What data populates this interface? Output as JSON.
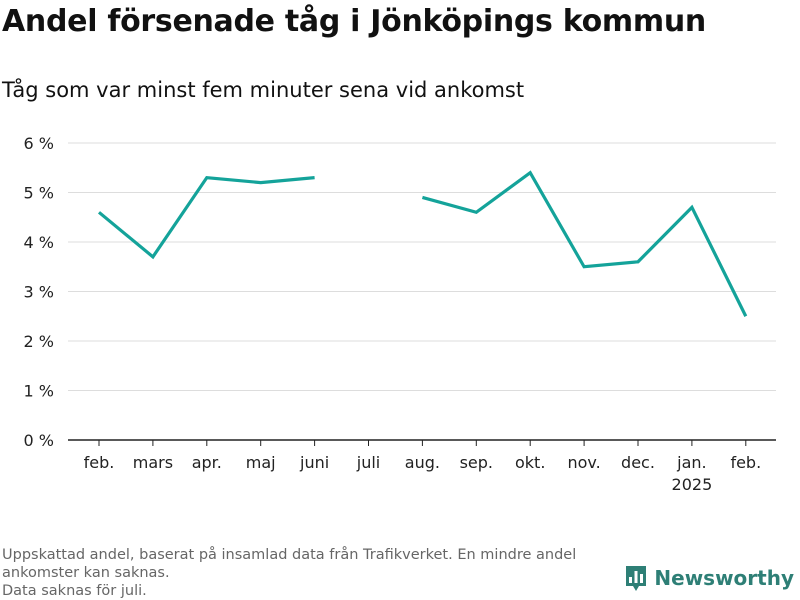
{
  "title": "Andel försenade tåg i Jönköpings kommun",
  "subtitle": "Tåg som var minst fem minuter sena vid ankomst",
  "footnote": {
    "line1": "Uppskattad andel, baserat på insamlad data från Trafikverket. En mindre andel ankomster kan saknas.",
    "line2": "Data saknas för juli."
  },
  "brand": {
    "name": "Newsworthy",
    "icon": "bar-chart-icon",
    "color": "#2e7f76"
  },
  "colors": {
    "line": "#14a39a",
    "grid": "#dddddd",
    "axis": "#222222"
  },
  "chart_data": {
    "type": "line",
    "title": "Andel försenade tåg i Jönköpings kommun",
    "subtitle": "Tåg som var minst fem minuter sena vid ankomst",
    "categories": [
      "feb.",
      "mars",
      "apr.",
      "maj",
      "juni",
      "juli",
      "aug.",
      "sep.",
      "okt.",
      "nov.",
      "dec.",
      "jan.",
      "feb."
    ],
    "category_sublabels": [
      "",
      "",
      "",
      "",
      "",
      "",
      "",
      "",
      "",
      "",
      "",
      "2025",
      ""
    ],
    "series": [
      {
        "values": [
          4.6,
          3.7,
          5.3,
          5.2,
          5.3,
          null,
          4.9,
          4.6,
          5.4,
          3.5,
          3.6,
          4.7,
          2.5
        ]
      }
    ],
    "ylim": [
      0,
      6
    ],
    "yticks": [
      0,
      1,
      2,
      3,
      4,
      5,
      6
    ],
    "ytick_labels": [
      "0 %",
      "1 %",
      "2 %",
      "3 %",
      "4 %",
      "5 %",
      "6 %"
    ],
    "xlabel": "",
    "ylabel": "",
    "grid": true,
    "legend": "none"
  }
}
